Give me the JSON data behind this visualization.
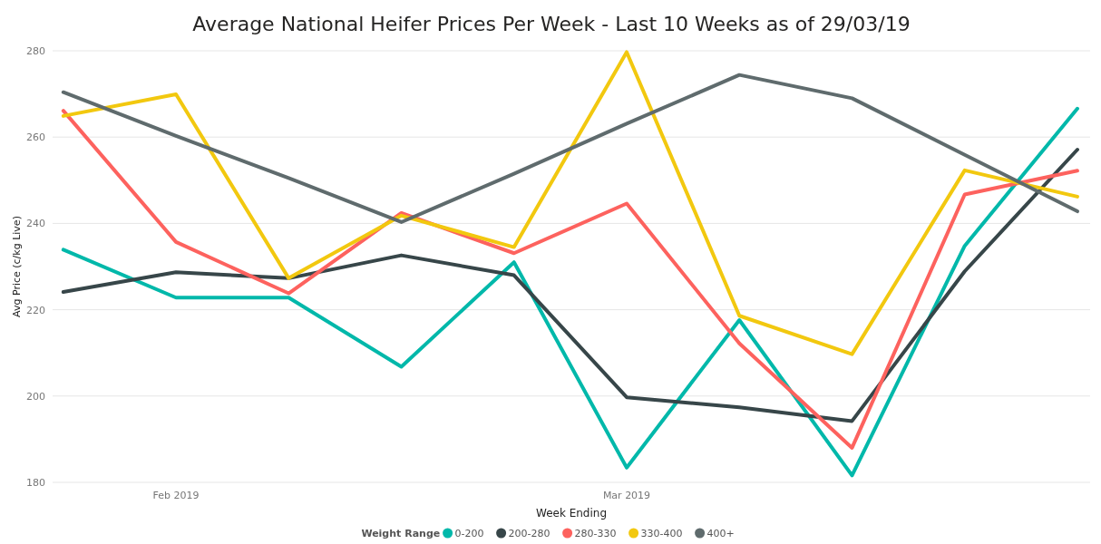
{
  "chart_data": {
    "type": "line",
    "title": "Average National Heifer Prices Per Week - Last 10 Weeks as of 29/03/19",
    "xlabel": "Week Ending",
    "ylabel": "Avg Price (c/kg Live)",
    "legend_title": "Weight Range",
    "x": [
      "2019-01-25",
      "2019-02-01",
      "2019-02-08",
      "2019-02-15",
      "2019-02-22",
      "2019-03-01",
      "2019-03-08",
      "2019-03-15",
      "2019-03-22",
      "2019-03-29"
    ],
    "xlim": [
      "2019-01-24T08:00",
      "2019-03-29T19:00"
    ],
    "xticks": [
      {
        "value": "2019-02-01",
        "label": "Feb 2019"
      },
      {
        "value": "2019-03-01",
        "label": "Mar 2019"
      }
    ],
    "ylim": [
      180,
      280
    ],
    "yticks": [
      180,
      200,
      220,
      240,
      260,
      280
    ],
    "grid": "y",
    "legend": "bottom",
    "line_style": "solid",
    "series": [
      {
        "name": "0-200",
        "color": "#01b8aa",
        "values": [
          233.9,
          222.8,
          222.8,
          206.8,
          231.0,
          183.4,
          217.6,
          181.6,
          234.8,
          266.6
        ]
      },
      {
        "name": "200-280",
        "color": "#374649",
        "values": [
          224.1,
          228.7,
          227.3,
          232.6,
          228.0,
          199.7,
          197.4,
          194.2,
          228.9,
          257.1
        ]
      },
      {
        "name": "280-330",
        "color": "#fd625e",
        "values": [
          266.1,
          235.7,
          223.8,
          242.4,
          233.1,
          244.6,
          212.2,
          188.0,
          246.7,
          252.2
        ]
      },
      {
        "name": "330-400",
        "color": "#f2c80f",
        "values": [
          264.9,
          269.9,
          227.3,
          241.8,
          234.5,
          279.7,
          218.6,
          209.7,
          252.3,
          246.2
        ]
      },
      {
        "name": "400+",
        "color": "#5f6b6d",
        "values": [
          270.4,
          260.3,
          250.5,
          240.3,
          251.5,
          263.1,
          274.4,
          269.0,
          255.9,
          242.8
        ]
      }
    ]
  }
}
